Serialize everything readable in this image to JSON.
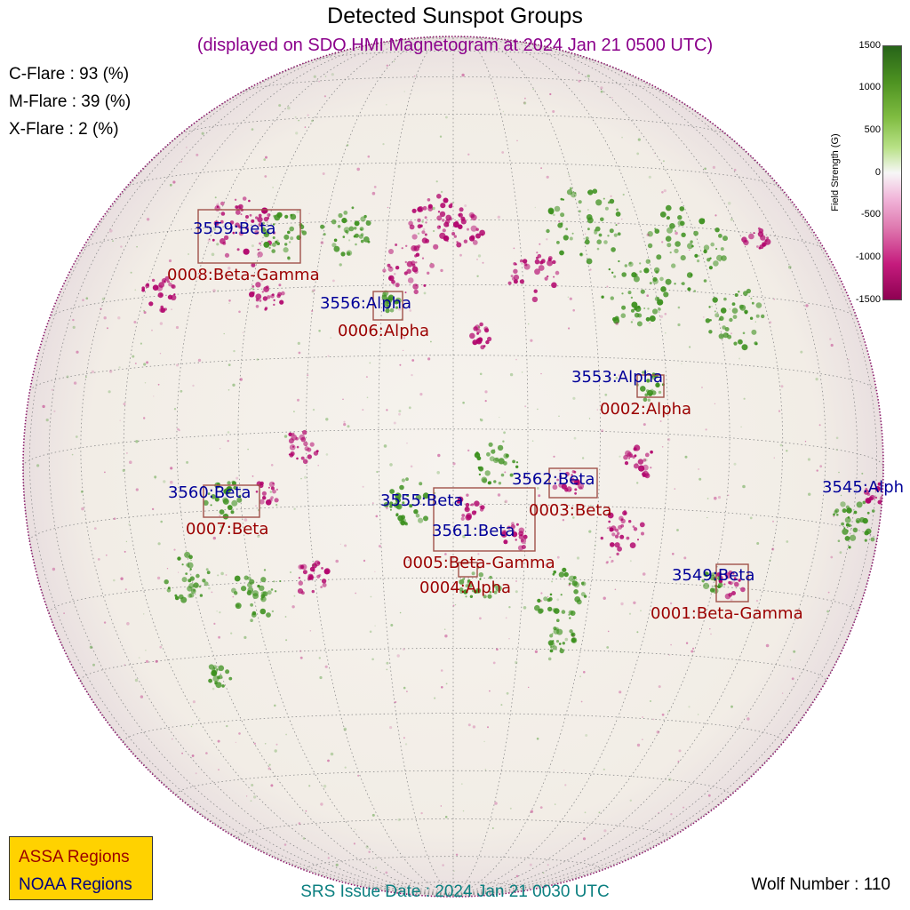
{
  "title": "Detected Sunspot Groups",
  "subtitle": "(displayed on SDO HMI Magnetogram at 2024 Jan 21 0500 UTC)",
  "flare_probabilities": {
    "c_flare": "C-Flare : 93 (%)",
    "m_flare": "M-Flare : 39 (%)",
    "x_flare": "X-Flare :  2 (%)"
  },
  "colorbar": {
    "label": "Field Strength (G)",
    "ticks": [
      "1500",
      "1000",
      "500",
      "0",
      "-500",
      "-1000",
      "-1500"
    ],
    "colors": {
      "positive": "#3a8f1c",
      "negative": "#b0006a"
    }
  },
  "legend": {
    "assa": "ASSA Regions",
    "noaa": "NOAA Regions"
  },
  "colors": {
    "assa": "#9b0000",
    "noaa": "#000099",
    "box": "#a0524a",
    "subtitle": "#8b008b",
    "srs": "#0b7f80"
  },
  "noaa_regions": [
    "3559:Beta",
    "3556:Alpha",
    "3553:Alpha",
    "3560:Beta",
    "3555:Beta",
    "3562:Beta",
    "3561:Beta",
    "3549:Beta",
    "3545:Alph"
  ],
  "assa_regions": [
    "0008:Beta-Gamma",
    "0006:Alpha",
    "0002:Alpha",
    "0007:Beta",
    "0003:Beta",
    "0005:Beta-Gamma",
    "0004:Alpha",
    "0001:Beta-Gamma"
  ],
  "srs_issue": "SRS Issue Date : 2024 Jan 21 0030 UTC",
  "wolf_number": "Wolf Number : 110"
}
